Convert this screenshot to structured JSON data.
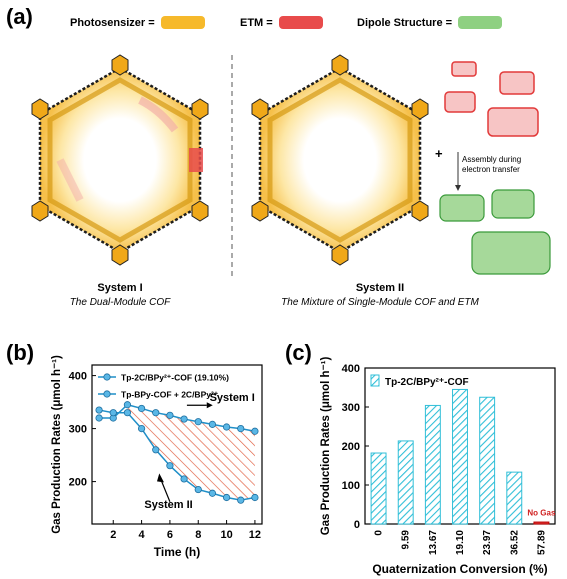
{
  "panel_a": {
    "label": "(a)",
    "legend": [
      {
        "label": "Photosensizer =",
        "color": "#f6b92b"
      },
      {
        "label": "ETM =",
        "color": "#e84b4b"
      },
      {
        "label": "Dipole  Structure =",
        "color": "#8ed081"
      }
    ],
    "system1": {
      "title": "System I",
      "subtitle": "The Dual-Module COF"
    },
    "system2": {
      "title": "System II",
      "subtitle": "The Mixture of Single-Module COF and ETM"
    },
    "plus": "+",
    "assembly_text": [
      "Assembly during",
      "electron transfer"
    ]
  },
  "chart_data": [
    {
      "panel": "(b)",
      "type": "line",
      "xlabel": "Time (h)",
      "ylabel": "Gas Production Rates (μmol h⁻¹)",
      "xlim": [
        0.5,
        12.5
      ],
      "ylim": [
        120,
        420
      ],
      "xticks": [
        2,
        4,
        6,
        8,
        10,
        12
      ],
      "yticks": [
        200,
        300,
        400
      ],
      "series": [
        {
          "name": "Tp-2C/BPy²⁺-COF (19.10%)",
          "color": "#1f8fc8",
          "x": [
            1,
            2,
            3,
            4,
            5,
            6,
            7,
            8,
            9,
            10,
            11,
            12
          ],
          "y": [
            320,
            320,
            345,
            338,
            330,
            325,
            318,
            313,
            308,
            303,
            300,
            295
          ]
        },
        {
          "name": "Tp-BPy-COF + 2C/BPy²⁺",
          "color": "#1f8fc8",
          "x": [
            1,
            2,
            3,
            4,
            5,
            6,
            7,
            8,
            9,
            10,
            11,
            12
          ],
          "y": [
            335,
            330,
            330,
            300,
            260,
            230,
            205,
            185,
            178,
            170,
            165,
            170
          ]
        }
      ],
      "annotations": [
        {
          "text": "System I"
        },
        {
          "text": "System II"
        }
      ]
    },
    {
      "panel": "(c)",
      "type": "bar",
      "xlabel": "Quaternization Conversion (%)",
      "ylabel": "Gas Production Rates (μmol h⁻¹)",
      "ylim": [
        0,
        400
      ],
      "yticks": [
        0,
        100,
        200,
        300,
        400
      ],
      "categories": [
        "0",
        "9.59",
        "13.67",
        "19.10",
        "23.97",
        "36.52",
        "57.89"
      ],
      "series": [
        {
          "name": "Tp-2C/BPy²⁺-COF",
          "color": "#31bfd8",
          "values": [
            182,
            213,
            304,
            345,
            325,
            133,
            5
          ]
        }
      ],
      "annotations": [
        {
          "text": "No Gas"
        }
      ]
    }
  ],
  "colors": {
    "photosensitizer": "#f6b92b",
    "etm": "#e84b4b",
    "dipole": "#8ed081",
    "accent": "#31bfd8",
    "hatch_red": "#e05a3a"
  }
}
